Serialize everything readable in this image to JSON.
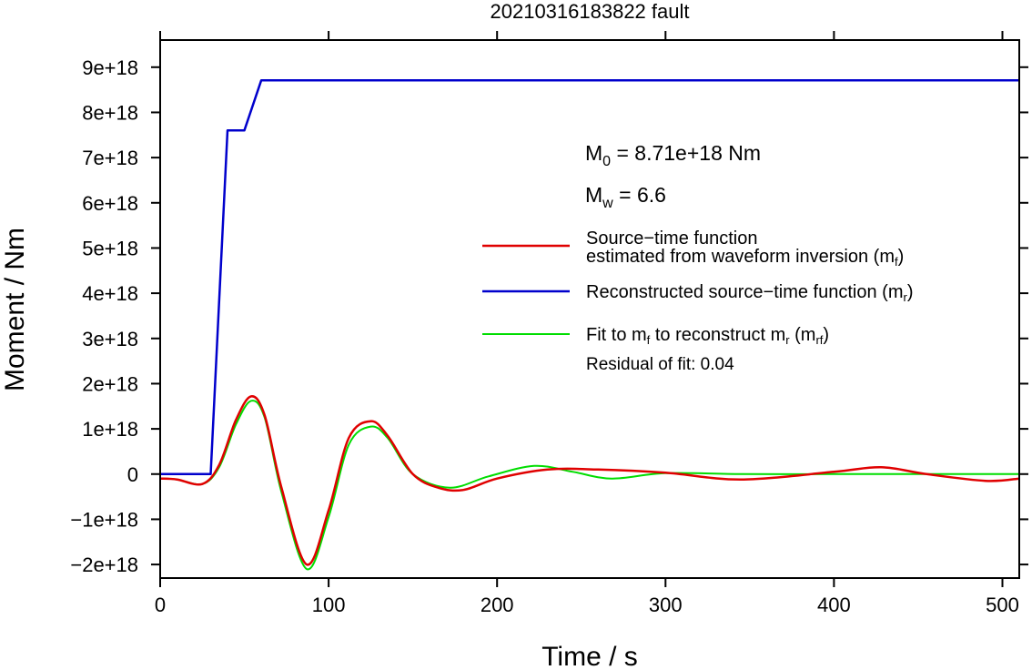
{
  "chart_data": {
    "type": "line",
    "title": "20210316183822 fault",
    "xlabel": "Time / s",
    "ylabel": "Moment / Nm",
    "xlim": [
      0,
      510
    ],
    "ylim": [
      -2.3e+18,
      9.6e+18
    ],
    "x_ticks": [
      {
        "v": 0,
        "label": "0"
      },
      {
        "v": 100,
        "label": "100"
      },
      {
        "v": 200,
        "label": "200"
      },
      {
        "v": 300,
        "label": "300"
      },
      {
        "v": 400,
        "label": "400"
      },
      {
        "v": 500,
        "label": "500"
      }
    ],
    "y_ticks": [
      {
        "v": -2e+18,
        "label": "−2e+18"
      },
      {
        "v": -1e+18,
        "label": "−1e+18"
      },
      {
        "v": 0,
        "label": "0"
      },
      {
        "v": 1e+18,
        "label": "1e+18"
      },
      {
        "v": 2e+18,
        "label": "2e+18"
      },
      {
        "v": 3e+18,
        "label": "3e+18"
      },
      {
        "v": 4e+18,
        "label": "4e+18"
      },
      {
        "v": 5e+18,
        "label": "5e+18"
      },
      {
        "v": 6e+18,
        "label": "6e+18"
      },
      {
        "v": 7e+18,
        "label": "7e+18"
      },
      {
        "v": 8e+18,
        "label": "8e+18"
      },
      {
        "v": 9e+18,
        "label": "9e+18"
      }
    ],
    "grid": false,
    "series": [
      {
        "key": "reconstructed",
        "color": "#0000cc",
        "x": [
          0,
          30,
          40,
          50,
          60,
          510
        ],
        "y": [
          0,
          0,
          7.6e+18,
          7.6e+18,
          8.71e+18,
          8.71e+18
        ]
      },
      {
        "key": "estimated",
        "color": "#e00000",
        "x": [
          0,
          10,
          25,
          35,
          45,
          54,
          62,
          72,
          87,
          100,
          112,
          125,
          135,
          150,
          165,
          180,
          200,
          230,
          260,
          300,
          345,
          400,
          428,
          455,
          490,
          510
        ],
        "y": [
          -1e+17,
          -1.2e+17,
          -2.2e+17,
          2e+17,
          1.2e+18,
          1.72e+18,
          1.3e+18,
          -3e+17,
          -2e+18,
          -8e+17,
          8e+17,
          1.17e+18,
          8.5e+17,
          0.0,
          -3e+17,
          -3.5e+17,
          -1e+17,
          1e+17,
          1e+17,
          3e+16,
          -1.2e+17,
          5e+16,
          1.5e+17,
          0.0,
          -1.5e+17,
          -1e+17
        ]
      },
      {
        "key": "fit",
        "color": "#00dd00",
        "x": [
          0,
          10,
          25,
          35,
          45,
          54,
          62,
          72,
          87,
          100,
          112,
          125,
          135,
          150,
          172,
          195,
          222,
          245,
          268,
          300,
          345,
          400,
          450,
          510
        ],
        "y": [
          -1e+17,
          -1.2e+17,
          -2.2e+17,
          1.5e+17,
          1.1e+18,
          1.62e+18,
          1.25e+18,
          -4e+17,
          -2.1e+18,
          -9.5e+17,
          6.5e+17,
          1.05e+18,
          8e+17,
          0.0,
          -3e+17,
          -5e+16,
          1.8e+17,
          5e+16,
          -1e+17,
          2e+16,
          0.0,
          0.0,
          0.0,
          0.0
        ]
      }
    ],
    "annotations": {
      "m0_letter": "M",
      "m0_sub": "0",
      "m0_rest": " = 8.71e+18 Nm",
      "mw_letter": "M",
      "mw_sub": "w",
      "mw_rest": " = 6.6",
      "residual": "Residual of fit: 0.04"
    },
    "legend": {
      "placement": "right",
      "estimated_line1": "Source−time function",
      "estimated_line2": "estimated from waveform inversion (m",
      "estimated_sub": "f",
      "estimated_close": ")",
      "reconstructed_text": "Reconstructed source−time function (m",
      "reconstructed_sub": "r",
      "reconstructed_close": ")",
      "fit_text1": "Fit to m",
      "fit_sub1": "f",
      "fit_text2": " to reconstruct m",
      "fit_sub2": "r",
      "fit_text3": " (m",
      "fit_sub3": "rf",
      "fit_close": ")"
    }
  }
}
